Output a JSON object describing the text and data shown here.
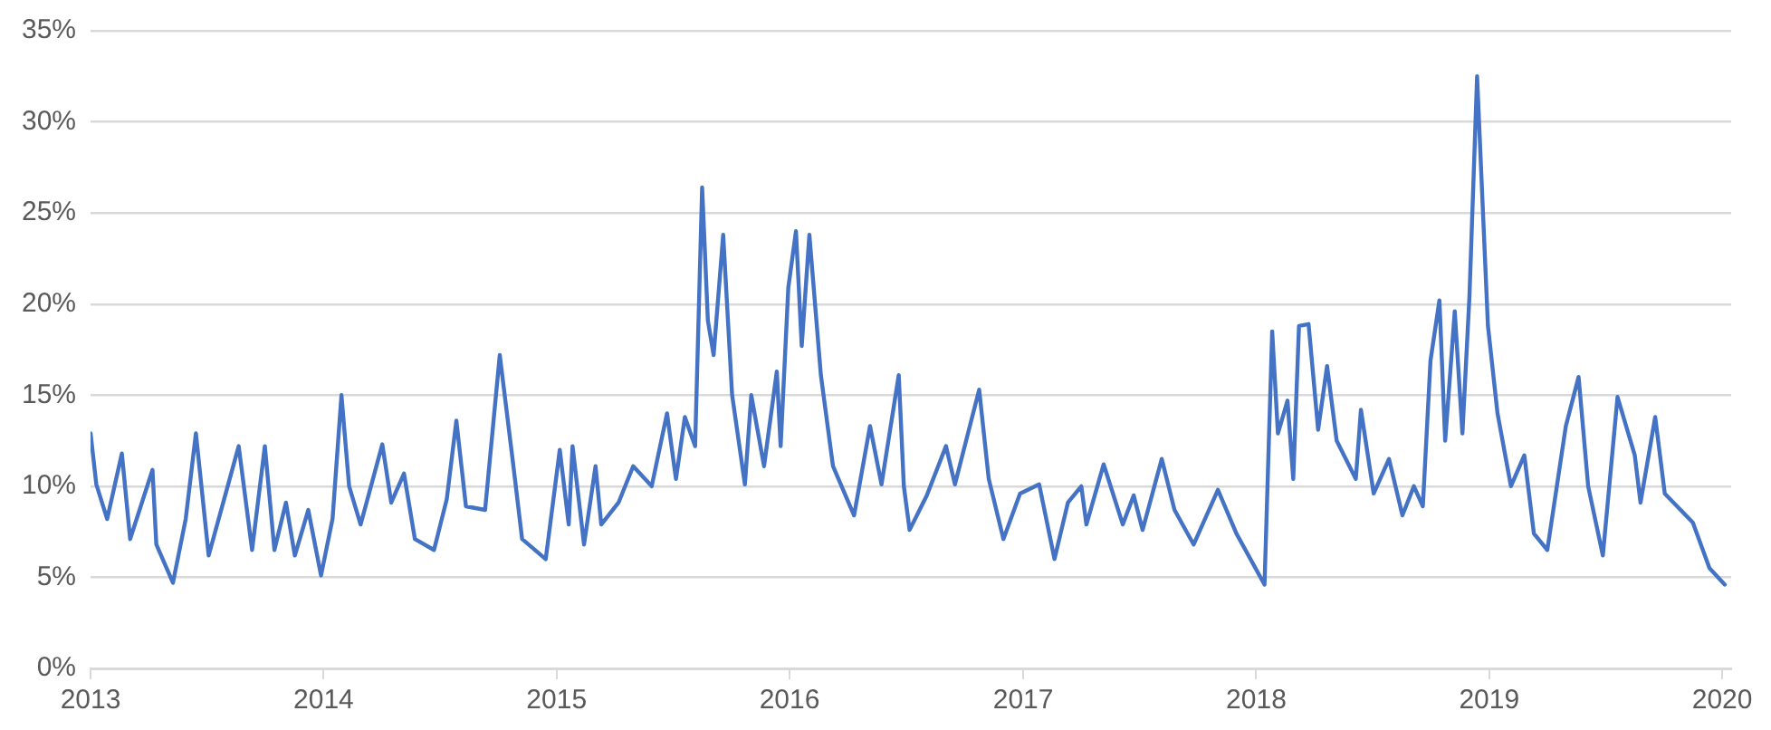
{
  "chart_data": {
    "type": "line",
    "x": [
      "2013-01-01",
      "2013-01-10",
      "2013-01-27",
      "2013-02-19",
      "2013-03-04",
      "2013-04-08",
      "2013-04-14",
      "2013-05-10",
      "2013-05-30",
      "2013-06-15",
      "2013-07-05",
      "2013-08-21",
      "2013-09-11",
      "2013-10-01",
      "2013-10-16",
      "2013-11-03",
      "2013-11-17",
      "2013-12-08",
      "2013-12-28",
      "2014-01-15",
      "2014-01-29",
      "2014-02-10",
      "2014-02-28",
      "2014-04-03",
      "2014-04-17",
      "2014-05-07",
      "2014-05-24",
      "2014-06-23",
      "2014-07-13",
      "2014-07-28",
      "2014-08-12",
      "2014-09-11",
      "2014-10-04",
      "2014-10-24",
      "2014-11-08",
      "2014-12-15",
      "2015-01-06",
      "2015-01-20",
      "2015-01-26",
      "2015-02-13",
      "2015-03-03",
      "2015-03-12",
      "2015-04-08",
      "2015-05-01",
      "2015-05-30",
      "2015-06-23",
      "2015-07-07",
      "2015-07-21",
      "2015-08-06",
      "2015-08-17",
      "2015-08-26",
      "2015-09-04",
      "2015-09-19",
      "2015-10-03",
      "2015-10-23",
      "2015-11-02",
      "2015-11-22",
      "2015-12-12",
      "2015-12-18",
      "2015-12-30",
      "2016-01-11",
      "2016-01-20",
      "2016-02-01",
      "2016-02-19",
      "2016-03-09",
      "2016-04-11",
      "2016-05-06",
      "2016-05-24",
      "2016-06-20",
      "2016-06-28",
      "2016-07-07",
      "2016-08-03",
      "2016-09-02",
      "2016-09-16",
      "2016-10-24",
      "2016-11-08",
      "2016-12-01",
      "2016-12-27",
      "2017-01-26",
      "2017-02-19",
      "2017-03-12",
      "2017-04-02",
      "2017-04-10",
      "2017-05-07",
      "2017-06-06",
      "2017-06-23",
      "2017-07-07",
      "2017-08-06",
      "2017-08-26",
      "2017-09-25",
      "2017-11-02",
      "2017-12-01",
      "2018-01-14",
      "2018-01-26",
      "2018-02-04",
      "2018-02-19",
      "2018-02-28",
      "2018-03-09",
      "2018-03-24",
      "2018-04-08",
      "2018-04-22",
      "2018-05-07",
      "2018-06-06",
      "2018-06-14",
      "2018-07-04",
      "2018-07-28",
      "2018-08-18",
      "2018-09-05",
      "2018-09-19",
      "2018-10-01",
      "2018-10-15",
      "2018-10-24",
      "2018-11-08",
      "2018-11-20",
      "2018-12-01",
      "2018-12-13",
      "2018-12-21",
      "2018-12-30",
      "2019-01-14",
      "2019-02-04",
      "2019-02-25",
      "2019-03-12",
      "2019-04-02",
      "2019-05-01",
      "2019-05-21",
      "2019-06-05",
      "2019-06-28",
      "2019-07-21",
      "2019-08-17",
      "2019-08-26",
      "2019-09-18",
      "2019-10-03",
      "2019-11-16",
      "2019-12-12",
      "2020-01-05"
    ],
    "series": [
      {
        "color": "#4472c4",
        "values": [
          12.9,
          10.1,
          8.2,
          11.8,
          7.1,
          10.9,
          6.8,
          4.7,
          8.2,
          12.9,
          6.2,
          12.2,
          6.5,
          12.2,
          6.5,
          9.1,
          6.2,
          8.7,
          5.1,
          8.2,
          15.0,
          10.0,
          7.9,
          12.3,
          9.1,
          10.7,
          7.1,
          6.5,
          9.3,
          13.6,
          8.9,
          8.7,
          17.2,
          11.5,
          7.1,
          6.0,
          12.0,
          7.9,
          12.2,
          6.8,
          11.1,
          7.9,
          9.1,
          11.1,
          10.0,
          14.0,
          10.4,
          13.8,
          12.2,
          26.4,
          19.1,
          17.2,
          23.8,
          15.0,
          10.1,
          15.0,
          11.1,
          16.3,
          12.2,
          20.9,
          24.0,
          17.7,
          23.8,
          16.1,
          11.1,
          8.4,
          13.3,
          10.1,
          16.1,
          10.0,
          7.6,
          9.5,
          12.2,
          10.1,
          15.3,
          10.4,
          7.1,
          9.6,
          10.1,
          6.0,
          9.1,
          10.0,
          7.9,
          11.2,
          7.9,
          9.5,
          7.6,
          11.5,
          8.7,
          6.8,
          9.8,
          7.4,
          4.6,
          18.5,
          12.9,
          14.7,
          10.4,
          18.8,
          18.9,
          13.1,
          16.6,
          12.5,
          10.4,
          14.2,
          9.6,
          11.5,
          8.4,
          10.0,
          8.9,
          16.9,
          20.2,
          12.5,
          19.6,
          12.9,
          20.4,
          32.5,
          26.0,
          18.8,
          14.0,
          10.0,
          11.7,
          7.4,
          6.5,
          13.3,
          16.0,
          10.0,
          6.2,
          14.9,
          11.7,
          9.1,
          13.8,
          9.6,
          8.0,
          5.5,
          4.6
        ]
      }
    ],
    "xlim": [
      "2013-01-01",
      "2020-01-15"
    ],
    "xticks": [
      "2013",
      "2014",
      "2015",
      "2016",
      "2017",
      "2018",
      "2019",
      "2020"
    ],
    "ylim": [
      0,
      35
    ],
    "yticks": [
      {
        "value": 0,
        "label": "0%"
      },
      {
        "value": 5,
        "label": "5%"
      },
      {
        "value": 10,
        "label": "10%"
      },
      {
        "value": 15,
        "label": "15%"
      },
      {
        "value": 20,
        "label": "20%"
      },
      {
        "value": 25,
        "label": "25%"
      },
      {
        "value": 30,
        "label": "30%"
      },
      {
        "value": 35,
        "label": "35%"
      }
    ],
    "grid": "y",
    "marker": "none",
    "line_style": "solid"
  }
}
